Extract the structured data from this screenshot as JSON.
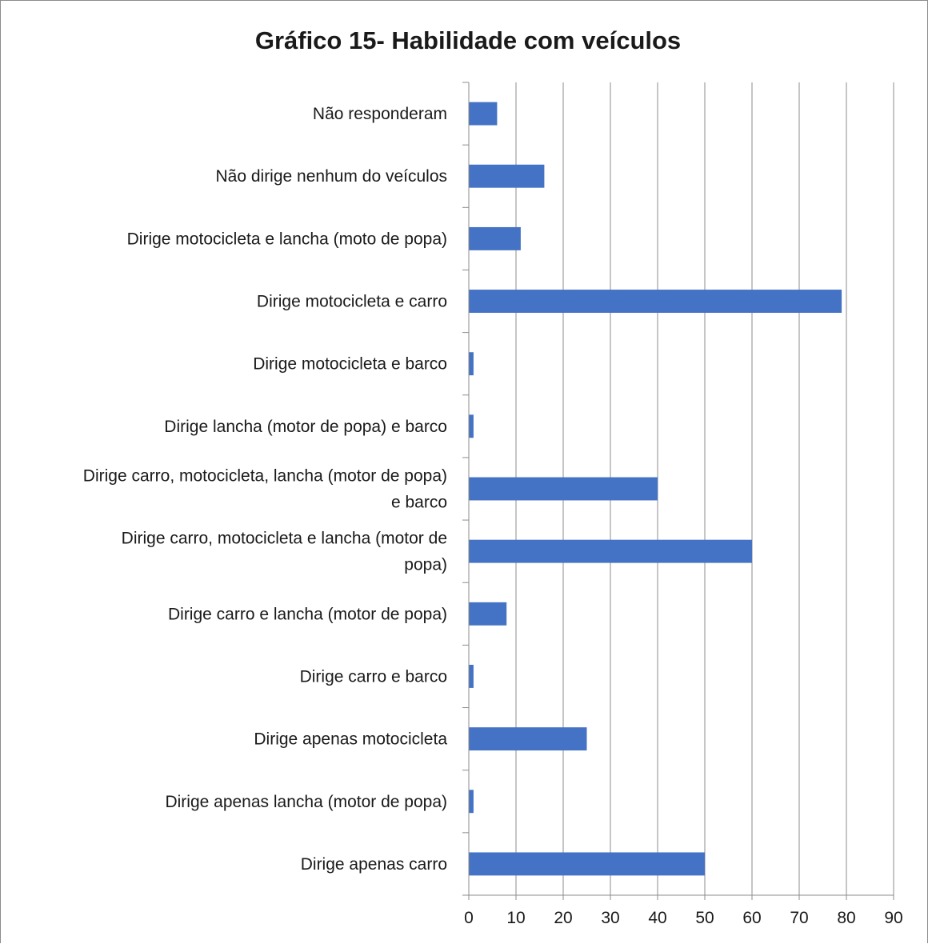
{
  "chart_data": {
    "type": "bar",
    "orientation": "horizontal",
    "title": "Gráfico 15- Habilidade com veículos",
    "categories": [
      "Não responderam",
      "Não dirige nenhum do veículos",
      "Dirige motocicleta e lancha (moto de popa)",
      "Dirige motocicleta e carro",
      "Dirige motocicleta e barco",
      "Dirige lancha (motor de popa) e barco",
      "Dirige carro, motocicleta, lancha (motor de popa) e barco",
      "Dirige carro, motocicleta e lancha (motor de popa)",
      "Dirige carro e lancha (motor de popa)",
      "Dirige carro e barco",
      "Dirige apenas motocicleta",
      "Dirige apenas lancha (motor de popa)",
      "Dirige apenas carro"
    ],
    "category_lines": [
      [
        "Não responderam"
      ],
      [
        "Não dirige nenhum do veículos"
      ],
      [
        "Dirige motocicleta e lancha (moto de popa)"
      ],
      [
        "Dirige motocicleta e carro"
      ],
      [
        "Dirige motocicleta e barco"
      ],
      [
        "Dirige lancha (motor de popa) e barco"
      ],
      [
        "Dirige carro, motocicleta, lancha (motor de popa)",
        "e barco"
      ],
      [
        "Dirige carro, motocicleta e lancha (motor de",
        "popa)"
      ],
      [
        "Dirige carro e lancha (motor de popa)"
      ],
      [
        "Dirige carro e barco"
      ],
      [
        "Dirige apenas motocicleta"
      ],
      [
        "Dirige apenas lancha (motor de popa)"
      ],
      [
        "Dirige apenas carro"
      ]
    ],
    "values": [
      6,
      16,
      11,
      79,
      1,
      1,
      40,
      60,
      8,
      1,
      25,
      1,
      50
    ],
    "xlim": [
      0,
      90
    ],
    "xticks": [
      0,
      10,
      20,
      30,
      40,
      50,
      60,
      70,
      80,
      90
    ],
    "grid": true,
    "legend": "none",
    "bar_color": "#4472c4",
    "grid_color": "#8c8c8c"
  }
}
